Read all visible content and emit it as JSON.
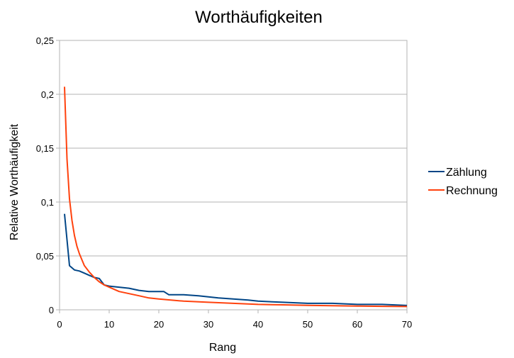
{
  "chart_data": {
    "type": "line",
    "title": "Worthäufigkeiten",
    "xlabel": "Rang",
    "ylabel": "Relative Worthäufigkeit",
    "xlim": [
      0,
      70
    ],
    "ylim": [
      0,
      0.25
    ],
    "x_ticks": [
      0,
      10,
      20,
      30,
      40,
      50,
      60,
      70
    ],
    "x_tick_labels": [
      "0",
      "10",
      "20",
      "30",
      "40",
      "50",
      "60",
      "70"
    ],
    "y_ticks": [
      0,
      0.05,
      0.1,
      0.15,
      0.2,
      0.25
    ],
    "y_tick_labels": [
      "0",
      "0,05",
      "0,1",
      "0,15",
      "0,2",
      "0,25"
    ],
    "grid": true,
    "legend_position": "right",
    "series": [
      {
        "name": "Zählung",
        "color": "#004586",
        "x": [
          1,
          2,
          3,
          4,
          5,
          6,
          7,
          8,
          9,
          10,
          12,
          14,
          16,
          18,
          20,
          21,
          22,
          25,
          28,
          30,
          32,
          35,
          38,
          40,
          45,
          50,
          55,
          60,
          65,
          70
        ],
        "y": [
          0.089,
          0.041,
          0.037,
          0.036,
          0.034,
          0.032,
          0.03,
          0.029,
          0.023,
          0.022,
          0.021,
          0.02,
          0.018,
          0.017,
          0.017,
          0.017,
          0.014,
          0.014,
          0.013,
          0.012,
          0.011,
          0.01,
          0.009,
          0.008,
          0.007,
          0.006,
          0.006,
          0.005,
          0.005,
          0.004
        ]
      },
      {
        "name": "Rechnung",
        "color": "#ff420e",
        "x": [
          1,
          1.5,
          2,
          2.5,
          3,
          3.5,
          4,
          5,
          6,
          7,
          8,
          9,
          10,
          12,
          14,
          16,
          18,
          20,
          25,
          30,
          35,
          40,
          45,
          50,
          55,
          60,
          65,
          70
        ],
        "y": [
          0.207,
          0.14,
          0.103,
          0.083,
          0.069,
          0.059,
          0.052,
          0.041,
          0.035,
          0.03,
          0.026,
          0.023,
          0.021,
          0.017,
          0.015,
          0.013,
          0.011,
          0.01,
          0.008,
          0.007,
          0.006,
          0.005,
          0.0046,
          0.0041,
          0.0038,
          0.0035,
          0.0032,
          0.003
        ]
      }
    ]
  }
}
